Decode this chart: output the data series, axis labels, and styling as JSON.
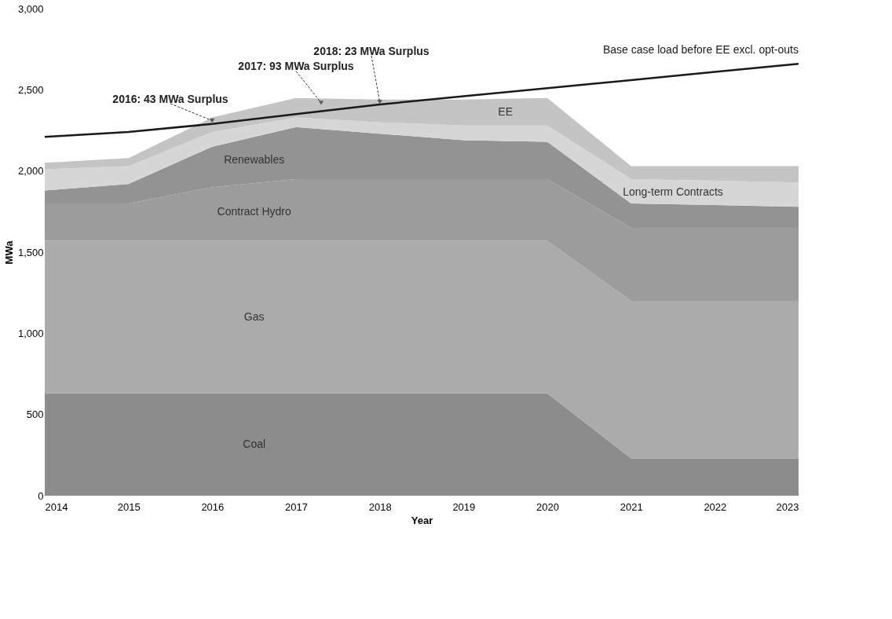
{
  "chart_data": {
    "type": "area",
    "stacked": true,
    "xlabel": "Year",
    "ylabel": "MWa",
    "x": [
      2014,
      2015,
      2016,
      2017,
      2018,
      2019,
      2020,
      2021,
      2022,
      2023
    ],
    "xlim": [
      2014,
      2023
    ],
    "xticks": [
      2014,
      2015,
      2016,
      2017,
      2018,
      2019,
      2020,
      2021,
      2022,
      2023
    ],
    "ylim": [
      0,
      3000
    ],
    "yticks": [
      {
        "value": 0,
        "label": "0"
      },
      {
        "value": 500,
        "label": "500"
      },
      {
        "value": 1000,
        "label": "1,000"
      },
      {
        "value": 1500,
        "label": "1,500"
      },
      {
        "value": 2000,
        "label": "2,000"
      },
      {
        "value": 2500,
        "label": "2,500"
      },
      {
        "value": 3000,
        "label": "3,000"
      }
    ],
    "grid": false,
    "legend": false,
    "series": [
      {
        "name": "Coal",
        "color": "#8c8c8c",
        "values": [
          630,
          630,
          630,
          630,
          630,
          630,
          630,
          230,
          230,
          230
        ]
      },
      {
        "name": "Gas",
        "color": "#ababab",
        "values": [
          940,
          940,
          940,
          940,
          940,
          940,
          940,
          970,
          970,
          970
        ]
      },
      {
        "name": "Contract Hydro",
        "color": "#9c9c9c",
        "values": [
          230,
          230,
          330,
          380,
          380,
          380,
          380,
          450,
          450,
          450
        ]
      },
      {
        "name": "Renewables",
        "color": "#939393",
        "values": [
          80,
          120,
          250,
          320,
          280,
          240,
          230,
          150,
          140,
          130
        ]
      },
      {
        "name": "Long-term Contracts",
        "color": "#d6d6d6",
        "values": [
          130,
          110,
          90,
          60,
          70,
          90,
          100,
          150,
          150,
          150
        ]
      },
      {
        "name": "EE",
        "color": "#c4c4c4",
        "values": [
          40,
          50,
          90,
          120,
          140,
          160,
          170,
          80,
          90,
          100
        ]
      },
      {
        "name": "Base case load before EE excl. opt-outs",
        "type": "line",
        "color": "#1a1a1a",
        "values": [
          2210,
          2240,
          2290,
          2350,
          2410,
          2460,
          2510,
          2560,
          2610,
          2660
        ]
      }
    ],
    "annotations": [
      {
        "text": "2016: 43 MWa Surplus",
        "x": 2016,
        "y": 2310
      },
      {
        "text": "2017: 93 MWa Surplus",
        "x": 2017.3,
        "y": 2420
      },
      {
        "text": "2018: 23 MWa Surplus",
        "x": 2018,
        "y": 2425
      }
    ]
  }
}
